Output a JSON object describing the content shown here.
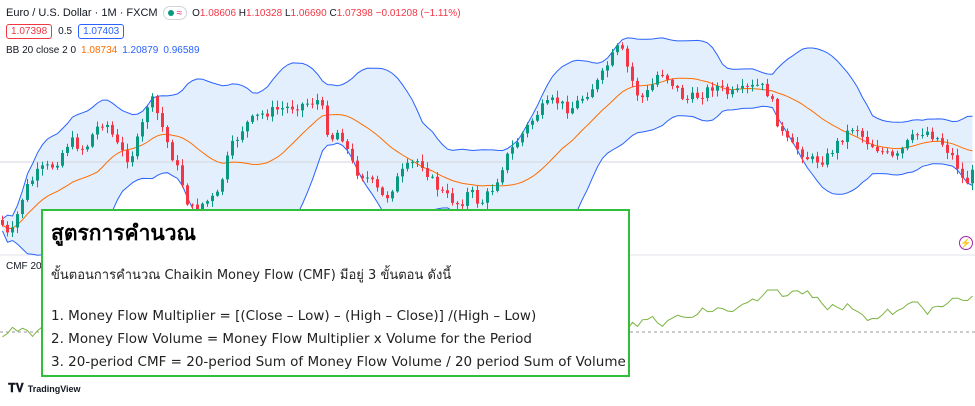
{
  "header": {
    "symbol": "Euro / U.S. Dollar · 1M · FXCM",
    "ohlc": {
      "o_label": "O",
      "o_value": "1.08606",
      "h_label": "H",
      "h_value": "1.10328",
      "l_label": "L",
      "l_value": "1.06690",
      "c_label": "C",
      "c_value": "1.07398",
      "change": "−0.01208 (−1.11%)"
    },
    "sell_price": "1.07398",
    "spread": "0.5",
    "buy_price": "1.07403"
  },
  "indicators": {
    "bb_label": "BB 20 close 2 0",
    "bb_basis": "1.08734",
    "bb_upper": "1.20879",
    "bb_lower": "0.96589",
    "cmf_label": "CMF 20"
  },
  "branding": {
    "logo_text": "TradingView"
  },
  "colors": {
    "up": "#089981",
    "down": "#f23645",
    "basis": "#ff6d00",
    "band": "#2962ff",
    "band_fill": "#e3effd",
    "cmf": "#7cb342",
    "overlay_border": "#2fbf3a"
  },
  "overlay": {
    "title": "สูตรการคำนวณ",
    "intro": "ขั้นตอนการคำนวณ Chaikin Money Flow (CMF) มีอยู่ 3 ขั้นตอน ดังนี้",
    "formulas": [
      "1. Money Flow Multiplier = [(Close  – Low) – (High – Close)] /(High – Low)",
      "2. Money Flow Volume = Money Flow Multiplier x Volume for the Period",
      "3. 20-period CMF = 20-period Sum of Money Flow Volume / 20 period Sum of Volume"
    ]
  }
}
